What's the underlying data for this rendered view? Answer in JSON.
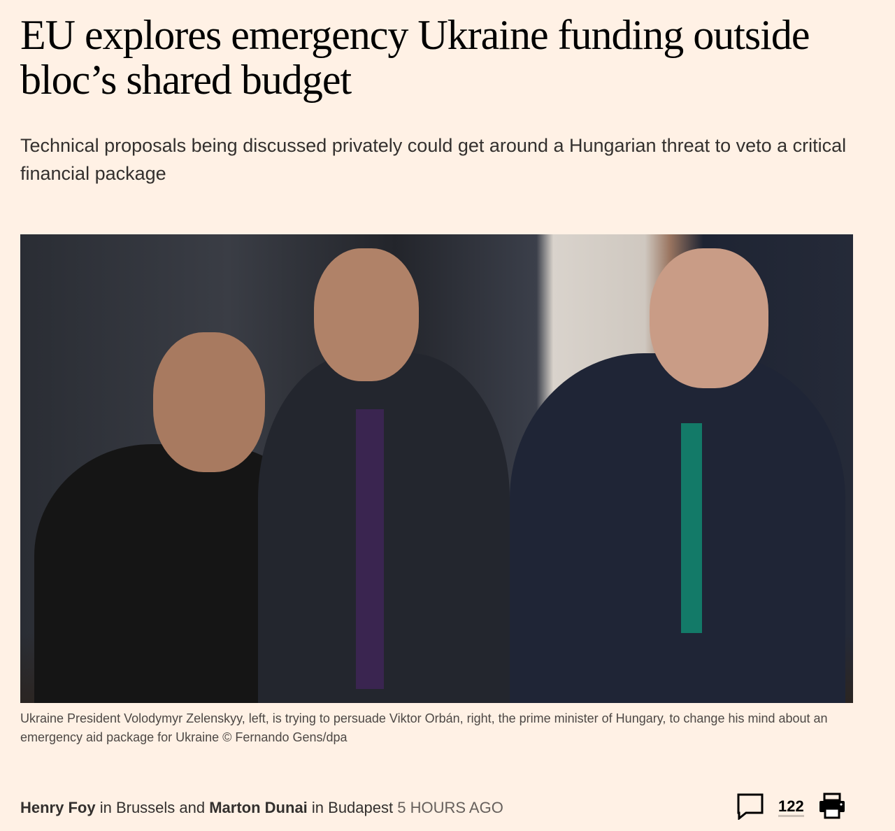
{
  "article": {
    "headline": "EU explores emergency Ukraine funding outside bloc’s shared budget",
    "standfirst": "Technical proposals being discussed privately could get around a Hungarian threat to veto a critical financial package",
    "image_caption": "Ukraine President Volodymyr Zelenskyy, left, is trying to persuade Viktor Orbán, right, the prime minister of Hungary, to change his mind about an emergency aid package for Ukraine © Fernando Gens/dpa",
    "byline": {
      "author1": "Henry Foy",
      "loc1": " in Brussels and ",
      "author2": "Marton Dunai",
      "loc2": " in Budapest ",
      "time": "5 hours ago"
    },
    "tools": {
      "comment_icon": "speech-bubble-icon",
      "comment_count": "122",
      "print_icon": "printer-icon"
    }
  },
  "colors": {
    "background": "#fff1e5",
    "text": "#33302e"
  }
}
